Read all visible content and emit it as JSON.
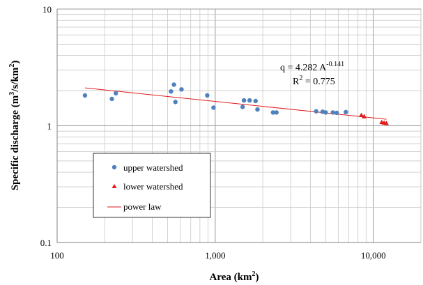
{
  "chart_data": {
    "type": "scatter",
    "x_scale": "log",
    "y_scale": "log",
    "xlabel_main": "Area",
    "xlabel_unit": "(km",
    "xlabel_sup": "2",
    "xlabel_close": ")",
    "ylabel_main": "Specific discharge",
    "ylabel_unit": "(m",
    "ylabel_sup1": "3",
    "ylabel_mid": "/s/km",
    "ylabel_sup2": "2",
    "ylabel_close": ")",
    "xlim": [
      100,
      20000
    ],
    "ylim": [
      0.1,
      10
    ],
    "grid": true,
    "legend_position": "bottom-left",
    "x_ticks": [
      {
        "value": 100,
        "label": "100"
      },
      {
        "value": 1000,
        "label": "1,000"
      },
      {
        "value": 10000,
        "label": "10,000"
      }
    ],
    "y_ticks": [
      {
        "value": 0.1,
        "label": "0.1"
      },
      {
        "value": 1,
        "label": "1"
      },
      {
        "value": 10,
        "label": "10"
      }
    ],
    "series": [
      {
        "name": "upper watershed",
        "marker": "circle",
        "color": "#4f81bd",
        "points": [
          [
            150,
            1.82
          ],
          [
            222,
            1.7
          ],
          [
            235,
            1.9
          ],
          [
            525,
            1.97
          ],
          [
            548,
            2.25
          ],
          [
            560,
            1.6
          ],
          [
            612,
            2.05
          ],
          [
            890,
            1.82
          ],
          [
            975,
            1.43
          ],
          [
            1490,
            1.45
          ],
          [
            1520,
            1.65
          ],
          [
            1650,
            1.65
          ],
          [
            1800,
            1.63
          ],
          [
            1850,
            1.38
          ],
          [
            2320,
            1.3
          ],
          [
            2440,
            1.3
          ],
          [
            4350,
            1.33
          ],
          [
            4780,
            1.32
          ],
          [
            5000,
            1.3
          ],
          [
            5550,
            1.3
          ],
          [
            5870,
            1.29
          ],
          [
            6700,
            1.31
          ]
        ]
      },
      {
        "name": "lower watershed",
        "marker": "triangle",
        "color": "#e31a1c",
        "points": [
          [
            8400,
            1.23
          ],
          [
            8750,
            1.2
          ],
          [
            11300,
            1.07
          ],
          [
            11700,
            1.06
          ],
          [
            12100,
            1.05
          ]
        ]
      },
      {
        "name": "power law",
        "marker": "line",
        "color": "#e31a1c",
        "coefficient": 4.282,
        "exponent": -0.141,
        "x_range": [
          150,
          12100
        ]
      }
    ],
    "annotation": {
      "eq_prefix": "q = 4.282 A",
      "eq_exponent": "-0.141",
      "r2_prefix": "R",
      "r2_sup": "2",
      "r2_value": " = 0.775"
    }
  }
}
